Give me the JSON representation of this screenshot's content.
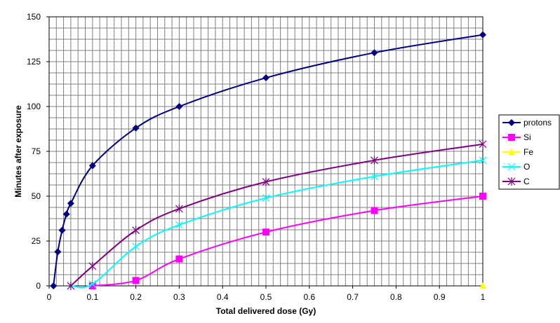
{
  "chart_data": {
    "type": "line",
    "title": "",
    "xlabel": "Total delivered dose (Gy)",
    "ylabel": "Minutes after exposure",
    "xlim": [
      0,
      1
    ],
    "ylim": [
      0,
      150
    ],
    "x_ticks": [
      "0",
      "0.1",
      "0.2",
      "0.3",
      "0.4",
      "0.5",
      "0.6",
      "0.7",
      "0.8",
      "0.9",
      "1"
    ],
    "y_ticks": [
      "0",
      "25",
      "50",
      "75",
      "100",
      "125",
      "150"
    ],
    "grid": true,
    "smoothed": true,
    "legend_position": "right",
    "series": [
      {
        "name": "protons",
        "color": "#000080",
        "marker": "diamond",
        "points": [
          [
            0.01,
            0
          ],
          [
            0.02,
            19
          ],
          [
            0.03,
            31
          ],
          [
            0.04,
            40
          ],
          [
            0.05,
            46
          ],
          [
            0.1,
            67
          ],
          [
            0.2,
            88
          ],
          [
            0.3,
            100
          ],
          [
            0.5,
            116
          ],
          [
            0.75,
            130
          ],
          [
            1,
            140
          ]
        ]
      },
      {
        "name": "Si",
        "color": "#FF00FF",
        "marker": "square",
        "points": [
          [
            0.1,
            0
          ],
          [
            0.2,
            3
          ],
          [
            0.3,
            15
          ],
          [
            0.5,
            30
          ],
          [
            0.75,
            42
          ],
          [
            1,
            50
          ]
        ]
      },
      {
        "name": "Fe",
        "color": "#FFFF00",
        "marker": "triangle",
        "points": [
          [
            1,
            0
          ]
        ]
      },
      {
        "name": "O",
        "color": "#00FFFF",
        "marker": "x",
        "points": [
          [
            0.05,
            0
          ],
          [
            0.1,
            1
          ],
          [
            0.2,
            22
          ],
          [
            0.3,
            34
          ],
          [
            0.5,
            49
          ],
          [
            0.75,
            61
          ],
          [
            1,
            70
          ]
        ]
      },
      {
        "name": "C",
        "color": "#800080",
        "marker": "star",
        "points": [
          [
            0.05,
            0
          ],
          [
            0.1,
            11
          ],
          [
            0.2,
            31
          ],
          [
            0.3,
            43
          ],
          [
            0.5,
            58
          ],
          [
            0.75,
            70
          ],
          [
            1,
            79
          ]
        ]
      }
    ]
  }
}
